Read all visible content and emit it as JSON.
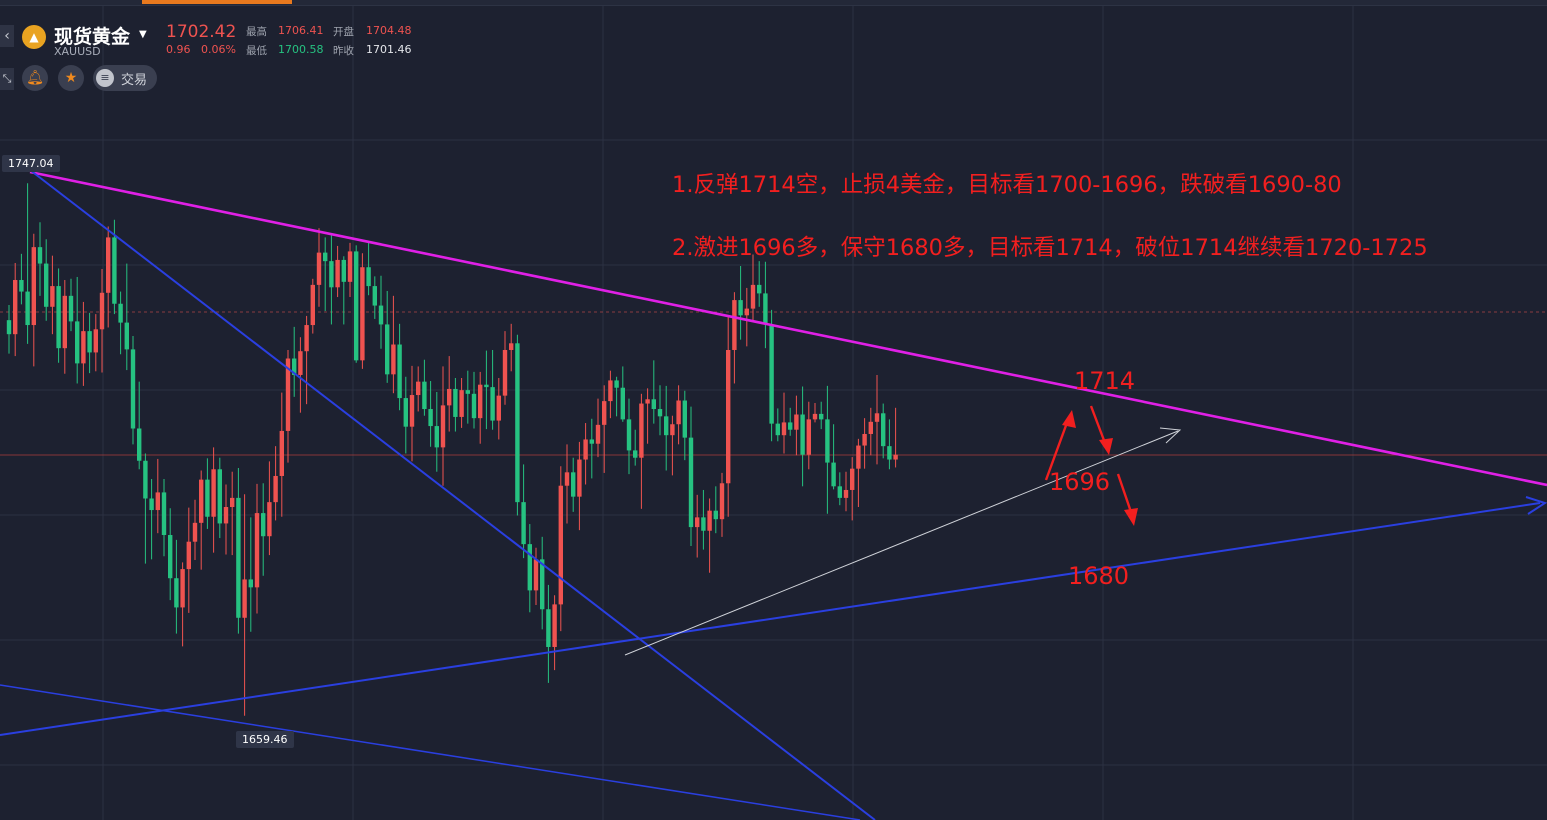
{
  "header": {
    "symbol_name": "现货黄金",
    "symbol_code": "XAUUSD",
    "symbol_icon": "gold-coin-icon",
    "last_price": "1702.42",
    "change": "0.96",
    "change_percent": "0.06%",
    "high_label": "最高",
    "high_value": "1706.41",
    "open_label": "开盘",
    "open_value": "1704.48",
    "low_label": "最低",
    "low_value": "1700.58",
    "prev_close_label": "昨收",
    "prev_close_value": "1701.46",
    "trade_label": "交易"
  },
  "chart_tags": {
    "high_tag": "1747.04",
    "low_tag": "1659.46"
  },
  "annotations": {
    "note1": "1.反弹1714空，止损4美金，目标看1700-1696，跌破看1690-80",
    "note2": "2.激进1696多，保守1680多，目标看1714，破位1714继续看1720-1725",
    "level_1714": "1714",
    "level_1696": "1696",
    "level_1680": "1680"
  },
  "colors": {
    "up": "#ef5350",
    "down": "#26c281",
    "resistance": "#e020e6",
    "support": "#2a3fe0",
    "annotation": "#f21f1f",
    "accent": "#e8791e"
  },
  "chart_data": {
    "type": "candlestick",
    "symbol": "XAUUSD",
    "marked_high": 1747.04,
    "marked_low": 1659.46,
    "candles": [
      [
        1724.5,
        1727.0,
        1719.0,
        1722.2
      ],
      [
        1722.2,
        1733.9,
        1718.6,
        1731.1
      ],
      [
        1731.1,
        1735.4,
        1727.1,
        1729.2
      ],
      [
        1729.2,
        1747.0,
        1720.6,
        1723.7
      ],
      [
        1723.7,
        1738.7,
        1716.9,
        1736.5
      ],
      [
        1736.5,
        1740.6,
        1728.5,
        1733.8
      ],
      [
        1733.8,
        1737.8,
        1724.4,
        1726.7
      ],
      [
        1726.7,
        1735.1,
        1722.2,
        1730.1
      ],
      [
        1730.1,
        1733.0,
        1717.5,
        1719.9
      ],
      [
        1719.9,
        1731.1,
        1715.7,
        1728.5
      ],
      [
        1728.5,
        1731.3,
        1722.7,
        1724.3
      ],
      [
        1724.3,
        1731.6,
        1714.1,
        1717.4
      ],
      [
        1717.4,
        1727.5,
        1713.7,
        1722.7
      ],
      [
        1722.7,
        1725.7,
        1715.8,
        1719.2
      ],
      [
        1719.2,
        1725.5,
        1716.1,
        1723.0
      ],
      [
        1723.0,
        1732.9,
        1715.9,
        1729.0
      ],
      [
        1729.0,
        1739.9,
        1723.3,
        1738.1
      ],
      [
        1738.1,
        1741.0,
        1725.5,
        1727.2
      ],
      [
        1727.2,
        1729.2,
        1718.9,
        1724.1
      ],
      [
        1724.1,
        1733.8,
        1716.3,
        1719.7
      ],
      [
        1719.7,
        1721.9,
        1704.1,
        1706.7
      ],
      [
        1706.7,
        1714.4,
        1700.0,
        1701.4
      ],
      [
        1701.4,
        1702.6,
        1684.5,
        1695.2
      ],
      [
        1695.2,
        1698.4,
        1685.2,
        1693.3
      ],
      [
        1693.3,
        1701.7,
        1689.5,
        1696.2
      ],
      [
        1696.2,
        1698.4,
        1685.7,
        1689.2
      ],
      [
        1689.2,
        1693.6,
        1678.5,
        1682.1
      ],
      [
        1682.1,
        1688.4,
        1673.0,
        1677.3
      ],
      [
        1677.3,
        1684.7,
        1670.9,
        1683.6
      ],
      [
        1683.6,
        1693.7,
        1676.4,
        1688.1
      ],
      [
        1688.1,
        1695.0,
        1685.1,
        1691.2
      ],
      [
        1691.2,
        1699.8,
        1683.5,
        1698.3
      ],
      [
        1698.3,
        1701.8,
        1690.2,
        1692.2
      ],
      [
        1692.2,
        1703.6,
        1686.3,
        1700.0
      ],
      [
        1700.0,
        1701.9,
        1688.7,
        1691.1
      ],
      [
        1691.1,
        1697.5,
        1686.0,
        1693.8
      ],
      [
        1693.8,
        1699.6,
        1685.9,
        1695.3
      ],
      [
        1695.3,
        1700.2,
        1673.0,
        1675.6
      ],
      [
        1675.6,
        1695.9,
        1659.5,
        1681.9
      ],
      [
        1681.9,
        1692.1,
        1673.3,
        1680.6
      ],
      [
        1680.6,
        1697.6,
        1676.3,
        1692.8
      ],
      [
        1692.8,
        1697.7,
        1682.5,
        1689.0
      ],
      [
        1689.0,
        1701.3,
        1685.9,
        1694.6
      ],
      [
        1694.6,
        1703.8,
        1691.6,
        1698.9
      ],
      [
        1698.9,
        1712.6,
        1692.2,
        1706.3
      ],
      [
        1706.3,
        1719.6,
        1701.1,
        1718.2
      ],
      [
        1718.2,
        1723.4,
        1711.9,
        1715.5
      ],
      [
        1715.5,
        1721.7,
        1709.3,
        1719.4
      ],
      [
        1719.4,
        1725.2,
        1710.7,
        1723.7
      ],
      [
        1723.7,
        1731.3,
        1722.3,
        1730.3
      ],
      [
        1730.3,
        1739.6,
        1726.7,
        1735.6
      ],
      [
        1735.6,
        1738.1,
        1726.0,
        1734.2
      ],
      [
        1734.2,
        1738.6,
        1723.8,
        1729.9
      ],
      [
        1729.9,
        1736.7,
        1728.3,
        1734.4
      ],
      [
        1734.4,
        1735.0,
        1723.8,
        1730.8
      ],
      [
        1730.8,
        1737.2,
        1728.3,
        1735.8
      ],
      [
        1735.8,
        1736.8,
        1717.5,
        1717.9
      ],
      [
        1717.9,
        1735.5,
        1716.5,
        1733.2
      ],
      [
        1733.2,
        1737.4,
        1728.6,
        1730.1
      ],
      [
        1730.1,
        1731.7,
        1724.7,
        1726.9
      ],
      [
        1726.9,
        1731.8,
        1719.8,
        1723.8
      ],
      [
        1723.8,
        1729.3,
        1714.2,
        1715.6
      ],
      [
        1715.6,
        1728.5,
        1712.5,
        1720.5
      ],
      [
        1720.5,
        1723.9,
        1709.7,
        1711.7
      ],
      [
        1711.7,
        1715.2,
        1702.6,
        1707.0
      ],
      [
        1707.0,
        1717.0,
        1701.3,
        1712.2
      ],
      [
        1712.2,
        1716.9,
        1709.5,
        1714.4
      ],
      [
        1714.4,
        1718.0,
        1708.8,
        1709.9
      ],
      [
        1709.9,
        1714.5,
        1703.7,
        1707.1
      ],
      [
        1707.1,
        1712.7,
        1699.6,
        1703.6
      ],
      [
        1703.6,
        1716.9,
        1697.3,
        1710.5
      ],
      [
        1710.5,
        1718.6,
        1706.2,
        1713.2
      ],
      [
        1713.2,
        1715.0,
        1706.2,
        1708.6
      ],
      [
        1708.6,
        1715.0,
        1706.8,
        1713.0
      ],
      [
        1713.0,
        1716.2,
        1707.5,
        1712.4
      ],
      [
        1712.4,
        1716.0,
        1706.7,
        1708.4
      ],
      [
        1708.4,
        1716.0,
        1704.2,
        1713.9
      ],
      [
        1713.9,
        1719.5,
        1706.6,
        1713.5
      ],
      [
        1713.5,
        1719.6,
        1706.5,
        1708.0
      ],
      [
        1708.0,
        1715.0,
        1704.9,
        1712.1
      ],
      [
        1712.1,
        1722.7,
        1710.6,
        1719.6
      ],
      [
        1719.6,
        1723.9,
        1716.1,
        1720.7
      ],
      [
        1720.7,
        1722.1,
        1692.4,
        1694.6
      ],
      [
        1694.6,
        1700.8,
        1685.4,
        1687.7
      ],
      [
        1687.7,
        1691.0,
        1676.5,
        1680.1
      ],
      [
        1680.1,
        1687.1,
        1677.7,
        1685.2
      ],
      [
        1685.2,
        1688.9,
        1673.7,
        1677.0
      ],
      [
        1677.0,
        1681.0,
        1664.9,
        1670.8
      ],
      [
        1670.8,
        1679.3,
        1667.0,
        1677.8
      ],
      [
        1677.8,
        1700.5,
        1673.4,
        1697.3
      ],
      [
        1697.3,
        1704.1,
        1691.1,
        1699.5
      ],
      [
        1699.5,
        1701.9,
        1693.0,
        1695.5
      ],
      [
        1695.5,
        1704.5,
        1690.0,
        1701.6
      ],
      [
        1701.6,
        1707.6,
        1697.5,
        1704.9
      ],
      [
        1704.9,
        1708.3,
        1698.5,
        1704.2
      ],
      [
        1704.2,
        1711.6,
        1702.0,
        1707.3
      ],
      [
        1707.3,
        1713.8,
        1699.4,
        1711.2
      ],
      [
        1711.2,
        1716.2,
        1708.4,
        1714.6
      ],
      [
        1714.6,
        1715.2,
        1708.7,
        1713.4
      ],
      [
        1713.4,
        1716.9,
        1707.8,
        1708.2
      ],
      [
        1708.2,
        1711.6,
        1699.2,
        1703.1
      ],
      [
        1703.1,
        1706.5,
        1700.6,
        1701.9
      ],
      [
        1701.9,
        1712.4,
        1693.5,
        1710.8
      ],
      [
        1710.8,
        1713.3,
        1704.2,
        1711.5
      ],
      [
        1711.5,
        1717.9,
        1707.5,
        1709.9
      ],
      [
        1709.9,
        1713.8,
        1705.6,
        1708.7
      ],
      [
        1708.7,
        1713.7,
        1699.8,
        1705.6
      ],
      [
        1705.6,
        1708.8,
        1699.0,
        1707.4
      ],
      [
        1707.4,
        1713.8,
        1704.1,
        1711.3
      ],
      [
        1711.3,
        1712.9,
        1701.5,
        1705.2
      ],
      [
        1705.2,
        1710.3,
        1687.4,
        1690.5
      ],
      [
        1690.5,
        1695.8,
        1685.5,
        1692.1
      ],
      [
        1692.1,
        1696.6,
        1686.8,
        1689.9
      ],
      [
        1689.9,
        1695.2,
        1683.0,
        1693.2
      ],
      [
        1693.2,
        1697.2,
        1689.5,
        1691.8
      ],
      [
        1691.8,
        1699.4,
        1688.9,
        1697.7
      ],
      [
        1697.7,
        1725.2,
        1692.2,
        1719.6
      ],
      [
        1719.6,
        1729.1,
        1714.1,
        1727.8
      ],
      [
        1727.8,
        1733.4,
        1721.3,
        1725.3
      ],
      [
        1725.3,
        1729.8,
        1720.2,
        1726.4
      ],
      [
        1726.4,
        1735.3,
        1724.3,
        1730.3
      ],
      [
        1730.3,
        1734.2,
        1726.7,
        1728.9
      ],
      [
        1728.9,
        1734.1,
        1719.9,
        1723.8
      ],
      [
        1723.8,
        1726.2,
        1704.6,
        1707.5
      ],
      [
        1707.5,
        1710.0,
        1704.6,
        1705.6
      ],
      [
        1705.6,
        1712.6,
        1702.6,
        1707.7
      ],
      [
        1707.7,
        1710.1,
        1705.5,
        1706.5
      ],
      [
        1706.5,
        1712.1,
        1702.3,
        1709.0
      ],
      [
        1709.0,
        1713.6,
        1697.2,
        1702.4
      ],
      [
        1702.4,
        1711.1,
        1700.0,
        1708.2
      ],
      [
        1708.2,
        1710.9,
        1707.7,
        1709.1
      ],
      [
        1709.1,
        1711.1,
        1706.6,
        1708.2
      ],
      [
        1708.2,
        1713.7,
        1692.7,
        1701.1
      ],
      [
        1701.1,
        1707.4,
        1696.7,
        1697.2
      ],
      [
        1697.2,
        1699.5,
        1694.1,
        1695.3
      ],
      [
        1695.3,
        1699.6,
        1693.1,
        1696.6
      ],
      [
        1696.6,
        1702.0,
        1691.6,
        1700.1
      ],
      [
        1700.1,
        1705.0,
        1693.8,
        1703.9
      ],
      [
        1703.9,
        1708.4,
        1700.1,
        1705.8
      ],
      [
        1705.8,
        1710.1,
        1702.3,
        1707.8
      ],
      [
        1707.8,
        1715.5,
        1700.8,
        1709.2
      ],
      [
        1709.2,
        1710.8,
        1701.8,
        1703.8
      ],
      [
        1703.8,
        1708.2,
        1700.0,
        1701.6
      ],
      [
        1701.6,
        1710.1,
        1700.3,
        1702.4
      ]
    ]
  }
}
